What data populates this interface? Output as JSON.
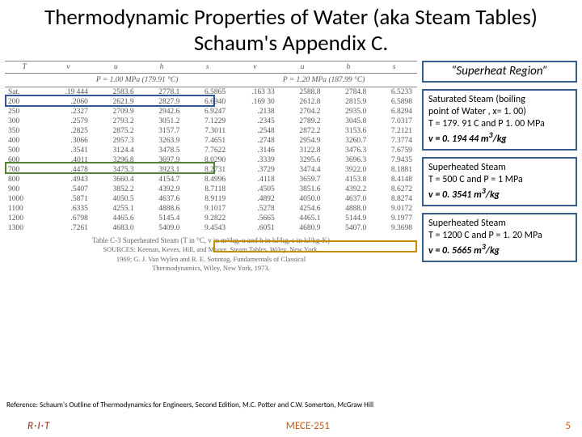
{
  "title": "Thermodynamic Properties of Water (aka Steam Tables) Schaum's Appendix C.",
  "region_label": "“Superheat Region”",
  "headers": [
    "T",
    "v",
    "u",
    "h",
    "s",
    "v",
    "u",
    "h",
    "s"
  ],
  "p_left": "P = 1.00 MPa (179.91 °C)",
  "p_right": "P = 1.20 MPa (187.99 °C)",
  "rows": [
    [
      "Sat.",
      ".19 444",
      "2583.6",
      "2778.1",
      "6.5865",
      ".163 33",
      "2588.8",
      "2784.8",
      "6.5233"
    ],
    [
      "200",
      ".2060",
      "2621.9",
      "2827.9",
      "6.6940",
      ".169 30",
      "2612.8",
      "2815.9",
      "6.5898"
    ],
    [
      "250",
      ".2327",
      "2709.9",
      "2942.6",
      "6.9247",
      ".2138",
      "2704.2",
      "2935.0",
      "6.8294"
    ],
    [
      "300",
      ".2579",
      "2793.2",
      "3051.2",
      "7.1229",
      ".2345",
      "2789.2",
      "3045.8",
      "7.0317"
    ],
    [
      "350",
      ".2825",
      "2875.2",
      "3157.7",
      "7.3011",
      ".2548",
      "2872.2",
      "3153.6",
      "7.2121"
    ],
    [
      "400",
      ".3066",
      "2957.3",
      "3263.9",
      "7.4651",
      ".2748",
      "2954.9",
      "3260.7",
      "7.3774"
    ],
    [
      "500",
      ".3541",
      "3124.4",
      "3478.5",
      "7.7622",
      ".3146",
      "3122.8",
      "3476.3",
      "7.6759"
    ],
    [
      "600",
      ".4011",
      "3296.8",
      "3697.9",
      "8.0290",
      ".3339",
      "3295.6",
      "3696.3",
      "7.9435"
    ],
    [
      "700",
      ".4478",
      "3475.3",
      "3923.1",
      "8.2731",
      ".3729",
      "3474.4",
      "3922.0",
      "8.1881"
    ],
    [
      "800",
      ".4943",
      "3660.4",
      "4154.7",
      "8.4996",
      ".4118",
      "3659.7",
      "4153.8",
      "8.4148"
    ],
    [
      "900",
      ".5407",
      "3852.2",
      "4392.9",
      "8.7118",
      ".4505",
      "3851.6",
      "4392.2",
      "8.6272"
    ],
    [
      "1000",
      ".5871",
      "4050.5",
      "4637.6",
      "8.9119",
      ".4892",
      "4050.0",
      "4637.0",
      "8.8274"
    ],
    [
      "1100",
      ".6335",
      "4255.1",
      "4888.6",
      "9.1017",
      ".5278",
      "4254.6",
      "4888.0",
      "9.0172"
    ],
    [
      "1200",
      ".6798",
      "4465.6",
      "5145.4",
      "9.2822",
      ".5665",
      "4465.1",
      "5144.9",
      "9.1977"
    ],
    [
      "1300",
      ".7261",
      "4683.0",
      "5409.0",
      "9.4543",
      ".6051",
      "4680.9",
      "5407.0",
      "9.3698"
    ]
  ],
  "caption": "Table C-3 Superheated Steam (T in °C, v in m³/kg, u and h in kJ/kg, s in kJ/kg·K)",
  "sources_l1": "SOURCES: Keenan, Keves, Hill, and Moore, Steam Tables, Wiley, New York,",
  "sources_l2": "1969; G. J. Van Wylen and R. E. Sonntag, Fundamentals of Classical",
  "sources_l3": "Thermodynamics, Wiley, New York, 1973.",
  "box_sat_l1": "Saturated Steam (boiling",
  "box_sat_l2": "point of Water , x= 1. 00)",
  "box_sat_l3": "T = 179. 91 C and P 1. 00 MPa",
  "box_sat_l4": "v = 0. 194 44 m",
  "box_sat_l5": "/kg",
  "box_500_l1": "Superheated Steam",
  "box_500_l2": " T = 500 C and P = 1 MPa",
  "box_500_l3": "v = 0. 3541 m",
  "box_500_l4": "/kg",
  "box_1200_l1": "Superheated Steam",
  "box_1200_l2": "T = 1200 C and P = 1. 20 MPa",
  "box_1200_l3": "v = 0. 5665 m",
  "box_1200_l4": "/kg",
  "sup3": "3",
  "reference": "Reference:  Schaum's Outline of Thermodynamics for Engineers, Second Edition, M.C. Potter and C.W. Somerton, McGraw Hill",
  "rit": "R·I·T",
  "course": "MECE-251",
  "pagenum": "5",
  "colors": {
    "box_border": "#385d8a",
    "hi_sat": "#2f5597",
    "hi_500": "#548235",
    "hi_1200": "#bf9000",
    "footer_accent": "#c55a11",
    "rit": "#8b2e1f"
  }
}
